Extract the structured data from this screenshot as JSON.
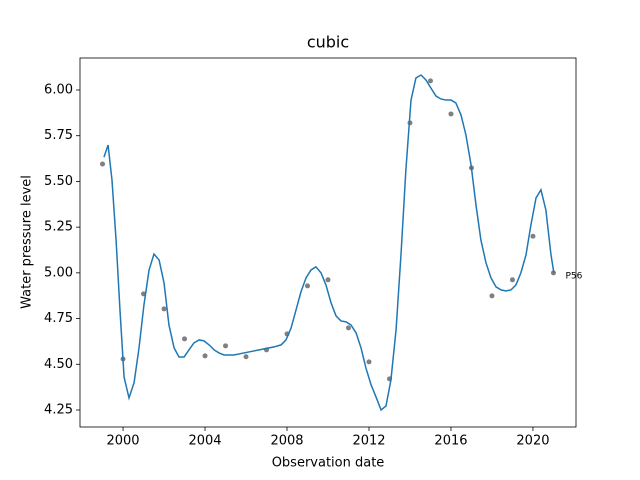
{
  "chart_data": {
    "type": "line",
    "title": "cubic",
    "xlabel": "Observation date",
    "ylabel": "Water pressure level",
    "annotation": "P56",
    "xlim": [
      1997.9,
      2022.1
    ],
    "ylim": [
      4.157,
      6.175
    ],
    "xticks": [
      2000,
      2004,
      2008,
      2012,
      2016,
      2020
    ],
    "yticks": [
      4.25,
      {
        "value": 4.5,
        "label": "4.50"
      },
      4.75,
      {
        "value": 5,
        "label": "5.00"
      },
      5.25,
      {
        "value": 5.5,
        "label": "5.50"
      },
      5.75,
      {
        "value": 6,
        "label": "6.00"
      }
    ],
    "series": [
      {
        "type": "scatter",
        "color": "#808080",
        "x": [
          1999,
          2000,
          2001,
          2002,
          2003,
          2004,
          2005,
          2006,
          2007,
          2008,
          2009,
          2010,
          2011,
          2012,
          2013,
          2014,
          2015,
          2016,
          2017,
          2018,
          2019,
          2020,
          2021
        ],
        "values": [
          5.595,
          4.529,
          4.885,
          4.803,
          4.639,
          4.546,
          4.601,
          4.541,
          4.579,
          4.666,
          4.929,
          4.962,
          4.699,
          4.513,
          4.42,
          5.82,
          6.05,
          5.869,
          5.574,
          4.874,
          4.962,
          5.2,
          5.0
        ]
      },
      {
        "type": "line",
        "color": "#1f77b4",
        "x": [
          1999.07,
          1999.27,
          1999.46,
          1999.66,
          1999.85,
          2000.05,
          2000.29,
          2000.54,
          2000.78,
          2001.02,
          2001.27,
          2001.51,
          2001.76,
          2002.0,
          2002.24,
          2002.49,
          2002.73,
          2002.98,
          2003.22,
          2003.46,
          2003.71,
          2003.95,
          2004.2,
          2004.44,
          2004.68,
          2004.93,
          2005.41,
          2005.9,
          2006.39,
          2006.88,
          2007.37,
          2007.71,
          2007.95,
          2008.2,
          2008.44,
          2008.68,
          2008.93,
          2009.17,
          2009.41,
          2009.66,
          2009.9,
          2010.15,
          2010.39,
          2010.63,
          2010.88,
          2011.12,
          2011.37,
          2011.61,
          2011.85,
          2012.1,
          2012.34,
          2012.59,
          2012.83,
          2013.07,
          2013.32,
          2013.56,
          2013.8,
          2014.05,
          2014.29,
          2014.54,
          2014.78,
          2015.02,
          2015.27,
          2015.51,
          2015.76,
          2016.0,
          2016.24,
          2016.49,
          2016.73,
          2016.98,
          2017.22,
          2017.46,
          2017.71,
          2017.95,
          2018.2,
          2018.44,
          2018.68,
          2018.93,
          2019.17,
          2019.41,
          2019.66,
          2019.9,
          2020.15,
          2020.39,
          2020.63,
          2020.88,
          2021.02
        ],
        "values": [
          5.633,
          5.699,
          5.508,
          5.18,
          4.797,
          4.43,
          4.316,
          4.4,
          4.59,
          4.825,
          5.016,
          5.103,
          5.07,
          4.945,
          4.715,
          4.59,
          4.54,
          4.54,
          4.579,
          4.617,
          4.633,
          4.628,
          4.606,
          4.579,
          4.562,
          4.551,
          4.551,
          4.562,
          4.573,
          4.584,
          4.595,
          4.606,
          4.633,
          4.699,
          4.797,
          4.896,
          4.973,
          5.016,
          5.033,
          5.0,
          4.934,
          4.836,
          4.765,
          4.737,
          4.732,
          4.715,
          4.672,
          4.59,
          4.48,
          4.388,
          4.322,
          4.25,
          4.272,
          4.414,
          4.688,
          5.098,
          5.563,
          5.945,
          6.066,
          6.082,
          6.055,
          6.011,
          5.967,
          5.951,
          5.945,
          5.945,
          5.929,
          5.863,
          5.754,
          5.59,
          5.371,
          5.18,
          5.054,
          4.973,
          4.923,
          4.907,
          4.901,
          4.907,
          4.934,
          5.0,
          5.098,
          5.262,
          5.41,
          5.454,
          5.344,
          5.098,
          5.0
        ]
      }
    ]
  }
}
